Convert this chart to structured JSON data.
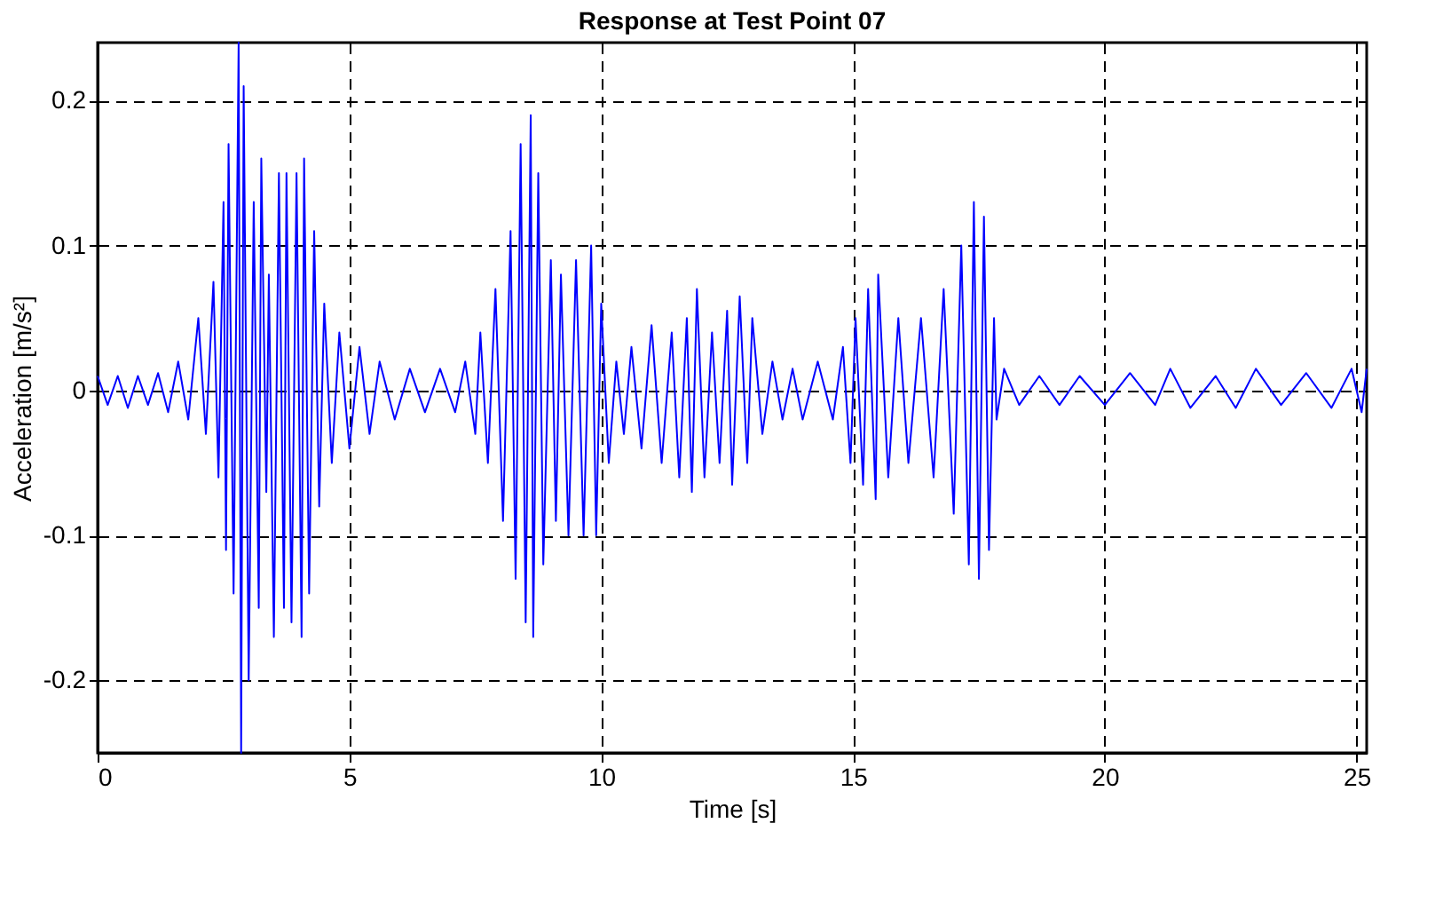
{
  "chart_data": {
    "type": "line",
    "title": "Response at Test Point 07",
    "xlabel": "Time [s]",
    "ylabel": "Acceleration [m/s²]",
    "xlim": [
      0,
      25.2
    ],
    "xticks": [
      0,
      5,
      10,
      15,
      20,
      25
    ],
    "ylim": [
      -0.25,
      0.24
    ],
    "yticks": [
      -0.2,
      -0.1,
      0,
      0.1,
      0.2
    ],
    "grid": true,
    "line_style": "solid",
    "series": [
      {
        "color": "#0000ff",
        "x": [
          0,
          0.2,
          0.4,
          0.6,
          0.8,
          1.0,
          1.2,
          1.4,
          1.6,
          1.8,
          2.0,
          2.15,
          2.3,
          2.4,
          2.5,
          2.55,
          2.6,
          2.7,
          2.8,
          2.85,
          2.9,
          3.0,
          3.1,
          3.2,
          3.25,
          3.35,
          3.4,
          3.5,
          3.6,
          3.7,
          3.75,
          3.85,
          3.95,
          4.05,
          4.1,
          4.2,
          4.3,
          4.4,
          4.5,
          4.65,
          4.8,
          5.0,
          5.2,
          5.4,
          5.6,
          5.9,
          6.2,
          6.5,
          6.8,
          7.1,
          7.3,
          7.5,
          7.6,
          7.75,
          7.9,
          8.05,
          8.2,
          8.3,
          8.4,
          8.5,
          8.6,
          8.65,
          8.75,
          8.85,
          9.0,
          9.1,
          9.2,
          9.35,
          9.5,
          9.65,
          9.8,
          9.9,
          10.0,
          10.15,
          10.3,
          10.45,
          10.6,
          10.8,
          11.0,
          11.2,
          11.4,
          11.55,
          11.7,
          11.8,
          11.9,
          12.05,
          12.2,
          12.35,
          12.5,
          12.6,
          12.75,
          12.9,
          13.0,
          13.2,
          13.4,
          13.6,
          13.8,
          14.0,
          14.3,
          14.6,
          14.8,
          14.95,
          15.05,
          15.2,
          15.3,
          15.45,
          15.5,
          15.7,
          15.9,
          16.1,
          16.35,
          16.6,
          16.8,
          17.0,
          17.15,
          17.3,
          17.4,
          17.5,
          17.6,
          17.7,
          17.8,
          17.85,
          18.0,
          18.3,
          18.7,
          19.1,
          19.5,
          20.0,
          20.5,
          21.0,
          21.3,
          21.7,
          22.2,
          22.6,
          23.0,
          23.5,
          24.0,
          24.5,
          24.9,
          25.1,
          25.2
        ],
        "values": [
          0.01,
          -0.01,
          0.01,
          -0.012,
          0.01,
          -0.01,
          0.012,
          -0.015,
          0.02,
          -0.02,
          0.05,
          -0.03,
          0.075,
          -0.06,
          0.13,
          -0.11,
          0.17,
          -0.14,
          0.24,
          -0.25,
          0.21,
          -0.2,
          0.13,
          -0.15,
          0.16,
          -0.07,
          0.08,
          -0.17,
          0.15,
          -0.15,
          0.15,
          -0.16,
          0.15,
          -0.17,
          0.16,
          -0.14,
          0.11,
          -0.08,
          0.06,
          -0.05,
          0.04,
          -0.04,
          0.03,
          -0.03,
          0.02,
          -0.02,
          0.015,
          -0.015,
          0.015,
          -0.015,
          0.02,
          -0.03,
          0.04,
          -0.05,
          0.07,
          -0.09,
          0.11,
          -0.13,
          0.17,
          -0.16,
          0.19,
          -0.17,
          0.15,
          -0.12,
          0.09,
          -0.09,
          0.08,
          -0.1,
          0.09,
          -0.1,
          0.1,
          -0.1,
          0.06,
          -0.05,
          0.02,
          -0.03,
          0.03,
          -0.04,
          0.045,
          -0.05,
          0.04,
          -0.06,
          0.05,
          -0.07,
          0.07,
          -0.06,
          0.04,
          -0.05,
          0.055,
          -0.065,
          0.065,
          -0.05,
          0.05,
          -0.03,
          0.02,
          -0.02,
          0.015,
          -0.02,
          0.02,
          -0.02,
          0.03,
          -0.05,
          0.05,
          -0.065,
          0.07,
          -0.075,
          0.08,
          -0.06,
          0.05,
          -0.05,
          0.05,
          -0.06,
          0.07,
          -0.085,
          0.1,
          -0.12,
          0.13,
          -0.13,
          0.12,
          -0.11,
          0.05,
          -0.02,
          0.015,
          -0.01,
          0.01,
          -0.01,
          0.01,
          -0.01,
          0.012,
          -0.01,
          0.015,
          -0.012,
          0.01,
          -0.012,
          0.015,
          -0.01,
          0.012,
          -0.012,
          0.015,
          -0.015,
          0.015
        ]
      }
    ]
  }
}
